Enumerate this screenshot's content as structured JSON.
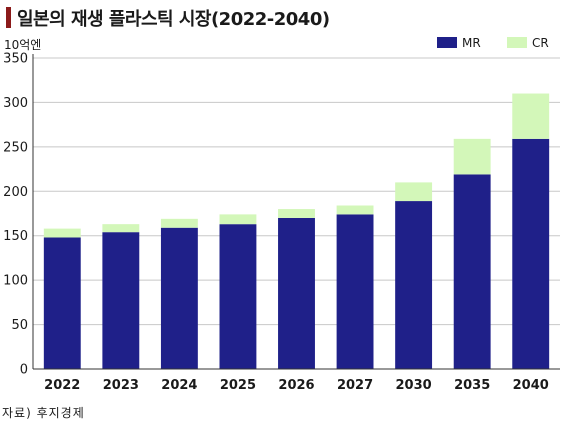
{
  "header": {
    "title": "일본의 재생 플라스틱 시장(2022-2040)",
    "unit": "10억엔"
  },
  "footer": {
    "source": "자료) 후지경제"
  },
  "colors": {
    "MR": "#1f2089",
    "CR": "#d3f7b9",
    "title_accent": "#8b1a1a"
  },
  "chart_data": {
    "type": "bar",
    "stacked": true,
    "categories": [
      "2022",
      "2023",
      "2024",
      "2025",
      "2026",
      "2027",
      "2030",
      "2035",
      "2040"
    ],
    "series": [
      {
        "name": "MR",
        "values": [
          148,
          154,
          159,
          163,
          170,
          174,
          189,
          219,
          259
        ]
      },
      {
        "name": "CR",
        "values": [
          10,
          9,
          10,
          11,
          10,
          10,
          21,
          40,
          51
        ]
      }
    ],
    "ylim": [
      0,
      350
    ],
    "yticks": [
      "0",
      "50",
      "100",
      "150",
      "200",
      "250",
      "300",
      "350"
    ],
    "grid": true,
    "legend": "top-right"
  }
}
